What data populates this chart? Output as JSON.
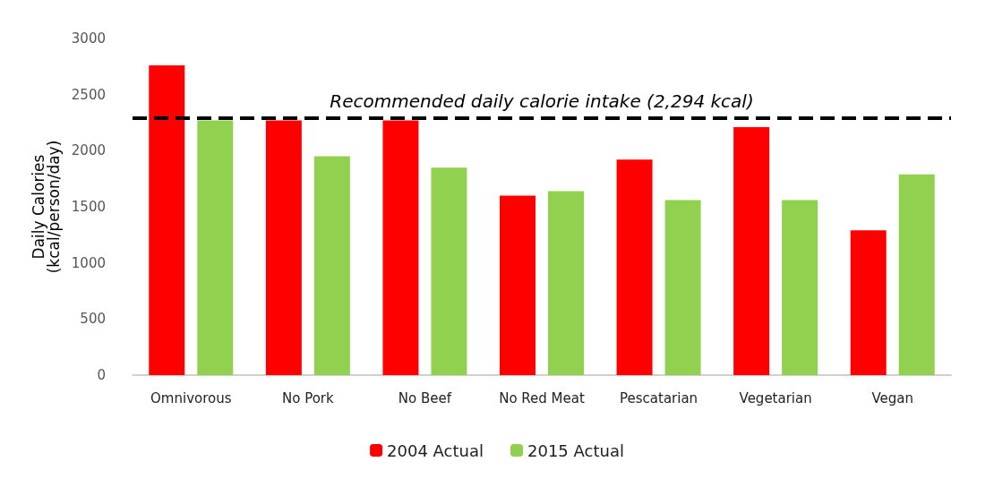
{
  "chart_data": {
    "type": "bar",
    "ylabel": "Daily Calories\n(kcal/person/day)",
    "categories": [
      "Omnivorous",
      "No Pork",
      "No Beef",
      "No Red Meat",
      "Pescatarian",
      "Vegetarian",
      "Vegan"
    ],
    "series": [
      {
        "name": "2004 Actual",
        "color": "#ff0000",
        "values": [
          2760,
          2270,
          2270,
          1600,
          1920,
          2210,
          1290
        ]
      },
      {
        "name": "2015 Actual",
        "color": "#92d050",
        "values": [
          2270,
          1950,
          1850,
          1640,
          1560,
          1560,
          1790
        ]
      }
    ],
    "ylim": [
      0,
      3000
    ],
    "yticks": [
      0,
      500,
      1000,
      1500,
      2000,
      2500,
      3000
    ],
    "grid": false,
    "legend": "bottom",
    "ref_lines": [
      {
        "axis": "y",
        "value": 2294,
        "label": "Recommended daily calorie intake (2,294 kcal)",
        "color": "#000000",
        "line_style": "dashed"
      }
    ]
  }
}
